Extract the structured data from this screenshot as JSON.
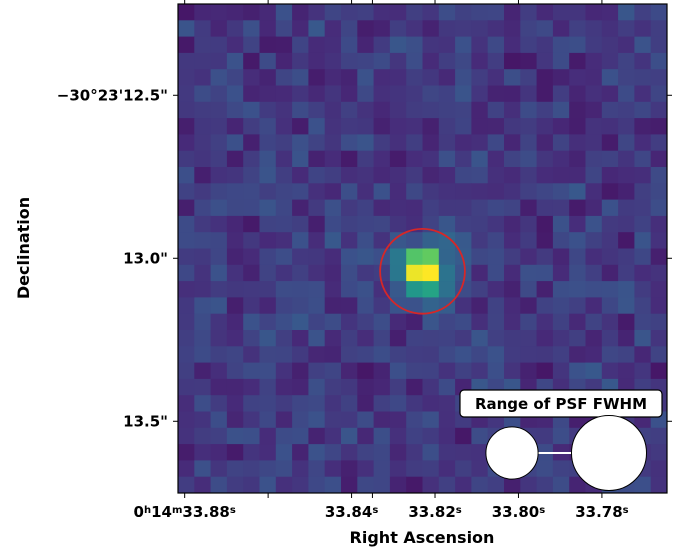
{
  "chart_data": {
    "type": "heatmap",
    "xlabel": "Right Ascension",
    "ylabel": "Declination",
    "colormap": "viridis",
    "grid": false,
    "x_ticks": [
      {
        "value": -0.0285,
        "label": "0h14m33.88s"
      },
      {
        "value": -0.0185,
        "label": ""
      },
      {
        "value": -0.0085,
        "label": "33.84s"
      },
      {
        "value": -0.006,
        "label": ""
      },
      {
        "value": 0.0015,
        "label": "33.82s"
      },
      {
        "value": 0.0115,
        "label": "33.80s"
      },
      {
        "value": 0.0215,
        "label": "33.78s"
      }
    ],
    "y_ticks": [
      {
        "value": 12.5,
        "label": "−30°23'12.5\""
      },
      {
        "value": 13.0,
        "label": "13.0\""
      },
      {
        "value": 13.5,
        "label": "13.5\""
      }
    ],
    "source": {
      "x": 0.0,
      "y": 13.04,
      "radius_arcsec": 0.13,
      "color": "#d62728"
    },
    "psf_fwhm_range": {
      "title": "Range of PSF FWHM",
      "min_diameter_arcsec": 0.16,
      "max_diameter_arcsec": 0.23
    },
    "colors": {
      "background_low": "#440154",
      "background_mid": "#3b528b",
      "peak": "#fde725",
      "circle": "#d62728",
      "frame": "#000000"
    }
  }
}
